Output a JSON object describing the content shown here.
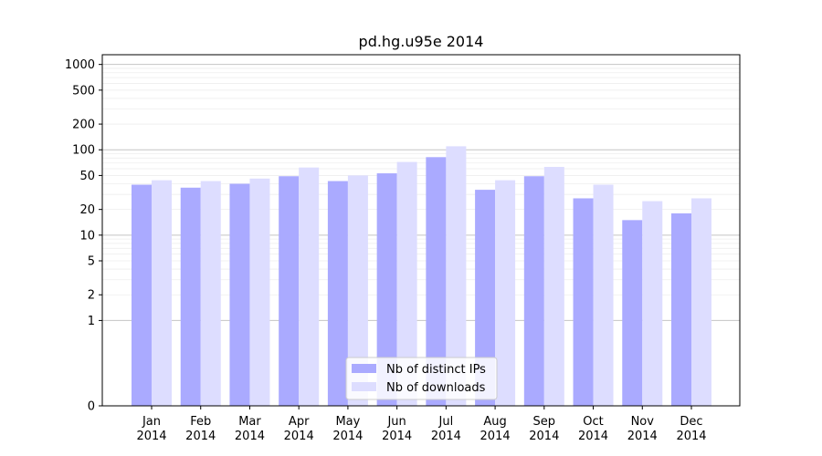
{
  "chart_data": {
    "type": "bar",
    "title": "pd.hg.u95e 2014",
    "xlabel": "",
    "ylabel": "",
    "yscale": "symlog",
    "ylim": [
      0,
      1300
    ],
    "yticks": [
      0,
      1,
      2,
      5,
      10,
      20,
      50,
      100,
      200,
      500,
      1000
    ],
    "grid": "horizontal",
    "legend_position": "bottom-center",
    "categories": [
      [
        "Jan",
        "2014"
      ],
      [
        "Feb",
        "2014"
      ],
      [
        "Mar",
        "2014"
      ],
      [
        "Apr",
        "2014"
      ],
      [
        "May",
        "2014"
      ],
      [
        "Jun",
        "2014"
      ],
      [
        "Jul",
        "2014"
      ],
      [
        "Aug",
        "2014"
      ],
      [
        "Sep",
        "2014"
      ],
      [
        "Oct",
        "2014"
      ],
      [
        "Nov",
        "2014"
      ],
      [
        "Dec",
        "2014"
      ]
    ],
    "series": [
      {
        "name": "Nb of distinct IPs",
        "color": "#aaaaff",
        "values": [
          39,
          36,
          40,
          49,
          43,
          53,
          82,
          34,
          49,
          27,
          15,
          18
        ]
      },
      {
        "name": "Nb of downloads",
        "color": "#ddddff",
        "values": [
          44,
          43,
          46,
          62,
          50,
          72,
          110,
          44,
          63,
          39,
          25,
          27
        ]
      }
    ]
  }
}
